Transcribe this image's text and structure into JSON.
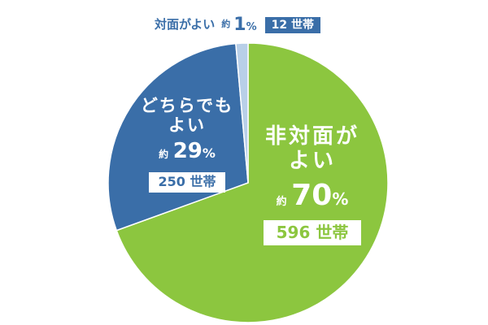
{
  "chart_data": {
    "type": "pie",
    "title": "",
    "slices": [
      {
        "name": "非対面がよい",
        "percent_label": "70",
        "prefix": "約",
        "unit": "%",
        "count_label": "596 世帯",
        "value": 596,
        "color": "#8cc63f"
      },
      {
        "name": "どちらでも\nよい",
        "percent_label": "29",
        "prefix": "約",
        "unit": "%",
        "count_label": "250 世帯",
        "value": 250,
        "color": "#3a6ea8"
      },
      {
        "name": "対面がよい",
        "percent_label": "1",
        "prefix": "約",
        "unit": "%",
        "count_label": "12 世帯",
        "value": 12,
        "color": "#b8cfe8"
      }
    ]
  },
  "labels": {
    "small": {
      "name": "対面がよい",
      "prefix": "約",
      "pct": "1",
      "unit": "%",
      "count": "12 世帯"
    },
    "mid": {
      "name": "どちらでも\nよい",
      "prefix": "約",
      "pct": "29",
      "unit": "%",
      "count": "250 世帯"
    },
    "big": {
      "name": "非対面が\nよい",
      "prefix": "約",
      "pct": "70",
      "unit": "%",
      "count": "596 世帯"
    }
  }
}
